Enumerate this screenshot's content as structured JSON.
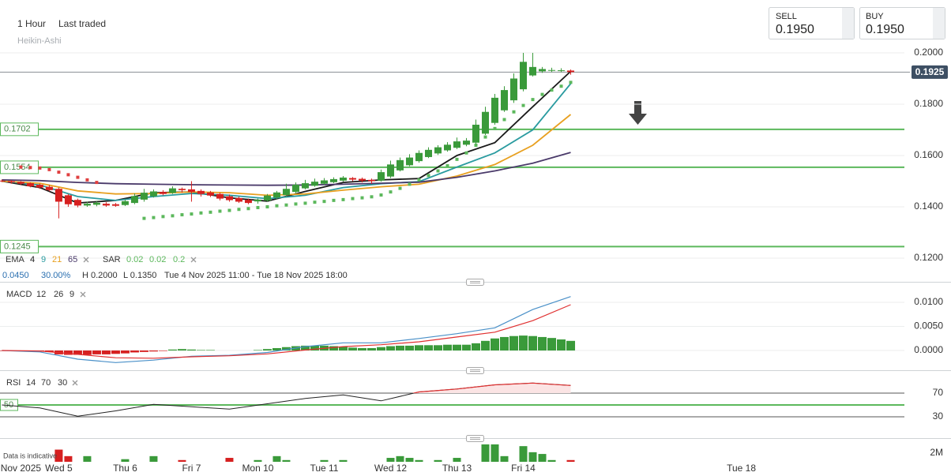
{
  "header": {
    "interval": "1 Hour",
    "price_mode": "Last traded",
    "chart_style": "Heikin-Ashi",
    "sell_label": "SELL",
    "sell_price": "0.1950",
    "buy_label": "BUY",
    "buy_price": "0.1950"
  },
  "chart_data": [
    {
      "type": "candlestick",
      "up_color": "#3a9a3a",
      "down_color": "#d62020",
      "grid": true,
      "grid_color": "#eceeee",
      "xlim": [
        -0.2,
        95.2
      ],
      "ylim": [
        0.116,
        0.2206
      ],
      "yticks": [
        {
          "value": 0.12,
          "label": "0.1200"
        },
        {
          "value": 0.14,
          "label": "0.1400"
        },
        {
          "value": 0.16,
          "label": "0.1600"
        },
        {
          "value": 0.18,
          "label": "0.1800"
        },
        {
          "value": 0.2,
          "label": "0.2000"
        }
      ],
      "xticks": [
        {
          "value": 2,
          "label": "Nov 2025"
        },
        {
          "value": 6,
          "label": "Wed 5"
        },
        {
          "value": 13,
          "label": "Thu 6"
        },
        {
          "value": 20,
          "label": "Fri 7"
        },
        {
          "value": 27,
          "label": "Mon 10"
        },
        {
          "value": 34,
          "label": "Tue 11"
        },
        {
          "value": 41,
          "label": "Wed 12"
        },
        {
          "value": 48,
          "label": "Thu 13"
        },
        {
          "value": 55,
          "label": "Fri 14"
        },
        {
          "value": 78,
          "label": "Tue 18"
        }
      ],
      "x": [
        0,
        1,
        2,
        3,
        4,
        5,
        6,
        7,
        8,
        9,
        10,
        11,
        12,
        13,
        14,
        15,
        16,
        17,
        18,
        19,
        20,
        21,
        22,
        23,
        24,
        25,
        26,
        27,
        28,
        29,
        30,
        31,
        32,
        33,
        34,
        35,
        36,
        37,
        38,
        39,
        40,
        41,
        42,
        43,
        44,
        45,
        46,
        47,
        48,
        49,
        50,
        51,
        52,
        53,
        54,
        55,
        56,
        57,
        58,
        59,
        60
      ],
      "open": [
        0.1502,
        0.15,
        0.1497,
        0.1492,
        0.1486,
        0.1478,
        0.147,
        0.1445,
        0.1427,
        0.1405,
        0.1408,
        0.1412,
        0.141,
        0.1407,
        0.1415,
        0.1428,
        0.1441,
        0.1458,
        0.1454,
        0.147,
        0.1468,
        0.1462,
        0.1456,
        0.145,
        0.1441,
        0.1434,
        0.1427,
        0.1421,
        0.1424,
        0.1436,
        0.1446,
        0.1458,
        0.1472,
        0.1482,
        0.149,
        0.1496,
        0.1502,
        0.1512,
        0.1509,
        0.1505,
        0.1502,
        0.1518,
        0.1542,
        0.1562,
        0.1578,
        0.1594,
        0.1608,
        0.162,
        0.163,
        0.1642,
        0.165,
        0.1685,
        0.1727,
        0.1776,
        0.1815,
        0.1858,
        0.1912,
        0.1928,
        0.1932,
        0.193,
        0.1931
      ],
      "high": [
        0.1506,
        0.1504,
        0.15,
        0.1495,
        0.149,
        0.1485,
        0.1475,
        0.145,
        0.1432,
        0.142,
        0.1422,
        0.1418,
        0.1415,
        0.1428,
        0.1452,
        0.147,
        0.1468,
        0.1465,
        0.148,
        0.1475,
        0.15,
        0.1468,
        0.1462,
        0.1455,
        0.1448,
        0.144,
        0.1432,
        0.1432,
        0.145,
        0.1462,
        0.149,
        0.1495,
        0.1505,
        0.151,
        0.1512,
        0.1515,
        0.152,
        0.1516,
        0.1514,
        0.151,
        0.1545,
        0.158,
        0.1592,
        0.1605,
        0.162,
        0.1632,
        0.164,
        0.1652,
        0.167,
        0.1668,
        0.174,
        0.179,
        0.184,
        0.187,
        0.192,
        0.2,
        0.2,
        0.1945,
        0.1942,
        0.194,
        0.1935
      ],
      "low": [
        0.1496,
        0.149,
        0.1486,
        0.1476,
        0.147,
        0.146,
        0.1355,
        0.14,
        0.1398,
        0.14,
        0.1402,
        0.14,
        0.14,
        0.1403,
        0.141,
        0.142,
        0.1436,
        0.1445,
        0.145,
        0.1455,
        0.142,
        0.144,
        0.1438,
        0.1425,
        0.142,
        0.1415,
        0.141,
        0.1412,
        0.142,
        0.143,
        0.144,
        0.1452,
        0.1468,
        0.1478,
        0.1486,
        0.1492,
        0.1498,
        0.15,
        0.1495,
        0.149,
        0.1498,
        0.1512,
        0.1538,
        0.1558,
        0.1572,
        0.159,
        0.1602,
        0.1615,
        0.1625,
        0.1636,
        0.1645,
        0.168,
        0.172,
        0.177,
        0.1805,
        0.185,
        0.1908,
        0.1922,
        0.1925,
        0.1925,
        0.1915
      ],
      "close": [
        0.15,
        0.1495,
        0.149,
        0.148,
        0.1475,
        0.1465,
        0.142,
        0.141,
        0.1405,
        0.1412,
        0.1416,
        0.1405,
        0.1404,
        0.1422,
        0.1442,
        0.1455,
        0.146,
        0.145,
        0.1472,
        0.1465,
        0.1458,
        0.145,
        0.1444,
        0.1432,
        0.1426,
        0.142,
        0.1415,
        0.1428,
        0.1444,
        0.1456,
        0.147,
        0.1486,
        0.1492,
        0.1498,
        0.1503,
        0.1508,
        0.1514,
        0.1506,
        0.1502,
        0.15,
        0.1535,
        0.1565,
        0.1582,
        0.1592,
        0.161,
        0.1622,
        0.1632,
        0.1642,
        0.1655,
        0.1658,
        0.172,
        0.177,
        0.1825,
        0.1855,
        0.19,
        0.1965,
        0.1945,
        0.1937,
        0.1933,
        0.1932,
        0.1925
      ],
      "ema_label": "EMA",
      "lines": [
        {
          "name": "4",
          "color": "#1a1a1a",
          "x": [
            0,
            4,
            8,
            12,
            16,
            20,
            24,
            28,
            32,
            36,
            40,
            44,
            48,
            52,
            56,
            60
          ],
          "values": [
            0.15,
            0.1475,
            0.1415,
            0.1425,
            0.1455,
            0.1458,
            0.1435,
            0.1422,
            0.146,
            0.1495,
            0.1505,
            0.151,
            0.16,
            0.165,
            0.179,
            0.1928
          ]
        },
        {
          "name": "9",
          "color": "#2a9ba0",
          "x": [
            0,
            4,
            8,
            12,
            16,
            20,
            24,
            28,
            32,
            36,
            40,
            44,
            48,
            52,
            56,
            60
          ],
          "values": [
            0.15,
            0.1485,
            0.144,
            0.1425,
            0.144,
            0.1452,
            0.1445,
            0.1432,
            0.1445,
            0.1475,
            0.149,
            0.1498,
            0.1555,
            0.161,
            0.17,
            0.188
          ]
        },
        {
          "name": "21",
          "color": "#e8a020",
          "x": [
            0,
            4,
            8,
            12,
            16,
            20,
            24,
            28,
            32,
            36,
            40,
            44,
            48,
            52,
            56,
            60
          ],
          "values": [
            0.15,
            0.1492,
            0.1462,
            0.145,
            0.1452,
            0.1458,
            0.1455,
            0.1445,
            0.145,
            0.1465,
            0.1478,
            0.1488,
            0.152,
            0.1565,
            0.164,
            0.176
          ]
        },
        {
          "name": "65",
          "color": "#4a3a6a",
          "x": [
            0,
            4,
            8,
            12,
            16,
            20,
            24,
            28,
            32,
            36,
            40,
            44,
            48,
            52,
            56,
            60
          ],
          "values": [
            0.1505,
            0.1502,
            0.1495,
            0.149,
            0.1488,
            0.1486,
            0.1485,
            0.1484,
            0.1485,
            0.1488,
            0.1492,
            0.1496,
            0.1515,
            0.154,
            0.157,
            0.1612
          ]
        }
      ],
      "sar": {
        "name": "SAR",
        "params": [
          0.02,
          0.02,
          0.2
        ],
        "up_color": "#5cb85c",
        "down_color": "#e04040",
        "x": [
          2,
          3,
          4,
          5,
          6,
          7,
          8,
          9,
          10,
          15,
          16,
          17,
          18,
          19,
          20,
          21,
          22,
          23,
          24,
          25,
          26,
          27,
          28,
          29,
          30,
          31,
          32,
          33,
          34,
          35,
          36,
          37,
          38,
          39,
          40,
          41,
          42,
          43,
          44,
          45,
          46,
          47,
          48,
          49,
          50,
          51,
          52,
          53,
          54,
          55,
          56,
          57,
          58,
          59,
          60
        ],
        "values": [
          0.1555,
          0.1553,
          0.1551,
          0.1545,
          0.1535,
          0.1525,
          0.1515,
          0.1505,
          0.1495,
          0.1355,
          0.1358,
          0.1362,
          0.1365,
          0.1369,
          0.1372,
          0.1376,
          0.1379,
          0.1383,
          0.1386,
          0.139,
          0.1393,
          0.1397,
          0.14,
          0.1404,
          0.1407,
          0.1411,
          0.1414,
          0.1418,
          0.1421,
          0.1425,
          0.1428,
          0.1432,
          0.1435,
          0.1439,
          0.1446,
          0.1458,
          0.1472,
          0.1488,
          0.1505,
          0.1522,
          0.154,
          0.156,
          0.1585,
          0.161,
          0.164,
          0.1672,
          0.1705,
          0.174,
          0.177,
          0.1795,
          0.1818,
          0.1838,
          0.1855,
          0.187,
          0.1885
        ]
      },
      "levels": {
        "color": "#5cb85c",
        "items": [
          {
            "value": 0.1702,
            "label": "0.1702"
          },
          {
            "value": 0.1554,
            "label": "0.1554"
          },
          {
            "value": 0.1245,
            "label": "0.1245"
          }
        ]
      },
      "last_price": {
        "value": 0.1925,
        "label": "0.1925"
      },
      "info": [
        "0.0450",
        "30.00%",
        "H 0.2000",
        "L 0.1350",
        "Tue 4 Nov 2025 11:00 - Tue 18 Nov 2025 18:00"
      ]
    },
    {
      "type": "macd",
      "title": "MACD",
      "params": [
        12,
        26,
        9
      ],
      "grid": true,
      "grid_color": "#eceeee",
      "ylim": [
        -0.00393,
        0.01344
      ],
      "yticks": [
        {
          "value": 0,
          "label": "0.0000"
        },
        {
          "value": 0.005,
          "label": "0.0050"
        },
        {
          "value": 0.01,
          "label": "0.0100"
        }
      ],
      "lines": [
        {
          "color": "#4a90c8",
          "x": [
            0,
            4,
            8,
            12,
            16,
            20,
            24,
            28,
            32,
            36,
            40,
            44,
            48,
            52,
            56,
            60
          ],
          "values": [
            0,
            -0.0003,
            -0.0018,
            -0.0025,
            -0.002,
            -0.0012,
            -0.001,
            -0.0004,
            0.0008,
            0.0016,
            0.0016,
            0.0025,
            0.0035,
            0.0047,
            0.0085,
            0.0112
          ]
        },
        {
          "color": "#e03030",
          "x": [
            0,
            4,
            8,
            12,
            16,
            20,
            24,
            28,
            32,
            36,
            40,
            44,
            48,
            52,
            56,
            60
          ],
          "values": [
            0,
            -0.0001,
            -0.0008,
            -0.0015,
            -0.0016,
            -0.0013,
            -0.0011,
            -0.0007,
            0.0001,
            0.0008,
            0.0012,
            0.0018,
            0.0028,
            0.0038,
            0.0062,
            0.0095
          ]
        }
      ],
      "histogram": {
        "up_color": "#3a9a3a",
        "down_color": "#d62020",
        "values": [
          -0.0001,
          -0.0001,
          -0.0001,
          -0.0002,
          -0.0002,
          -0.0003,
          -0.0008,
          -0.0009,
          -0.0009,
          -0.0009,
          -0.0008,
          -0.0008,
          -0.0007,
          -0.0006,
          -0.0004,
          -0.0003,
          -0.0002,
          -0.0001,
          0.0002,
          0.0003,
          0.0002,
          0.0001,
          0.0001,
          0,
          0,
          0,
          0,
          0.0001,
          0.0003,
          0.0005,
          0.0007,
          0.0009,
          0.001,
          0.001,
          0.001,
          0.0009,
          0.0008,
          0.0006,
          0.0005,
          0.0005,
          0.0007,
          0.0009,
          0.001,
          0.001,
          0.0011,
          0.0011,
          0.0011,
          0.0012,
          0.0012,
          0.0012,
          0.0015,
          0.002,
          0.0025,
          0.0028,
          0.003,
          0.0031,
          0.003,
          0.0028,
          0.0026,
          0.0023,
          0.002
        ]
      }
    },
    {
      "type": "line",
      "title": "RSI",
      "params": [
        14,
        70,
        30
      ],
      "grid": true,
      "grid_color": "#555555",
      "ylim": [
        -2,
        104.7
      ],
      "yticks": [
        30,
        70
      ],
      "mid_level": 50,
      "mid_color": "#5cb85c",
      "color": "#222222",
      "overbought_color": "#e03030",
      "overbought_fill": "#fbe4e4",
      "x": [
        0,
        4,
        8,
        12,
        16,
        20,
        24,
        28,
        32,
        36,
        40,
        44,
        48,
        52,
        56,
        60
      ],
      "values": [
        50,
        45,
        31,
        40,
        51,
        47,
        43,
        52,
        61,
        67,
        57,
        72,
        77,
        84,
        87,
        83
      ]
    },
    {
      "type": "bar",
      "note": "Data is indicative",
      "grid": false,
      "ylim": [
        0,
        4900000
      ],
      "yticks": [
        {
          "value": 2000000,
          "label": "2M"
        }
      ],
      "values": [
        0,
        0,
        0,
        0,
        0,
        0,
        2800000,
        1300000,
        0,
        1300000,
        0,
        0,
        0,
        600000,
        0,
        0,
        1300000,
        0,
        0,
        400000,
        0,
        0,
        0,
        0,
        900000,
        0,
        0,
        400000,
        0,
        1300000,
        400000,
        0,
        0,
        0,
        400000,
        0,
        400000,
        0,
        0,
        0,
        0,
        900000,
        1300000,
        900000,
        400000,
        0,
        400000,
        0,
        900000,
        0,
        0,
        4000000,
        4000000,
        1300000,
        0,
        3600000,
        2200000,
        1800000,
        400000,
        0,
        400000
      ]
    }
  ]
}
